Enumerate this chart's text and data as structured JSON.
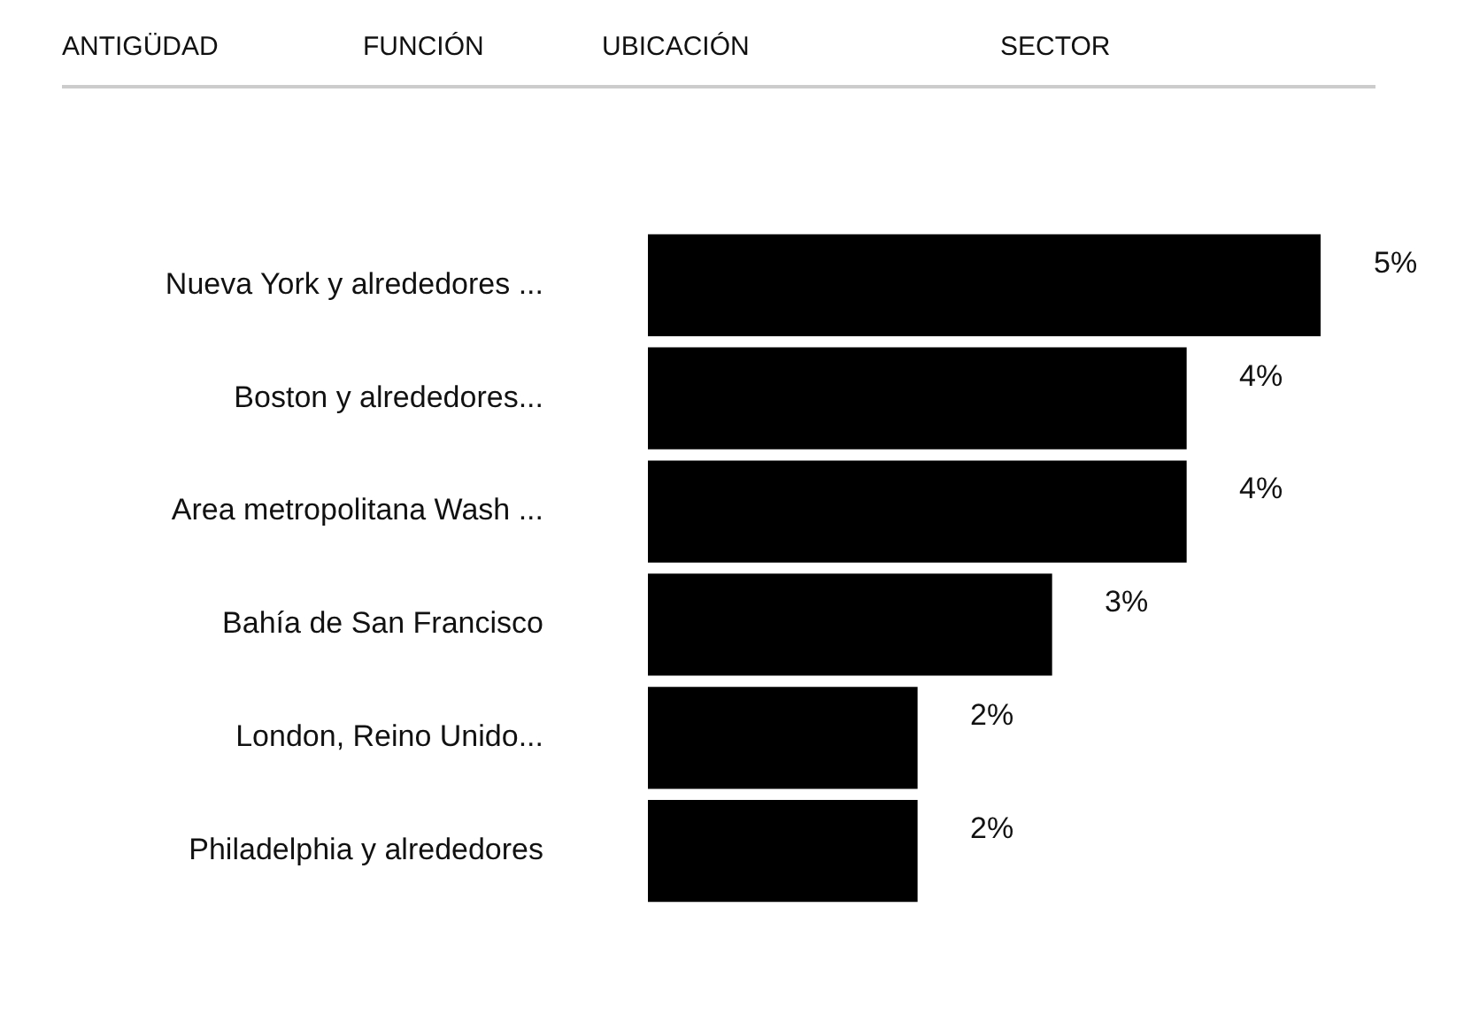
{
  "chart_data": {
    "type": "bar",
    "orientation": "horizontal",
    "categories": [
      "Nueva York y alrededores ...",
      "Boston y alrededores...",
      "Area metropolitana Wash ...",
      "Bahía de San Francisco",
      "London, Reino Unido...",
      "Philadelphia y alrededores"
    ],
    "values": [
      5,
      4,
      4,
      3,
      2,
      2
    ],
    "color": "#000000",
    "value_labels": [
      "5%",
      "4%",
      "4%",
      "3%",
      "2%",
      "2%"
    ],
    "annotations": [
      "ANTIGÜDAD",
      "FUNCIÓN",
      "UBICACIÓN",
      "SECTOR"
    ],
    "grid": false,
    "legend": false
  }
}
